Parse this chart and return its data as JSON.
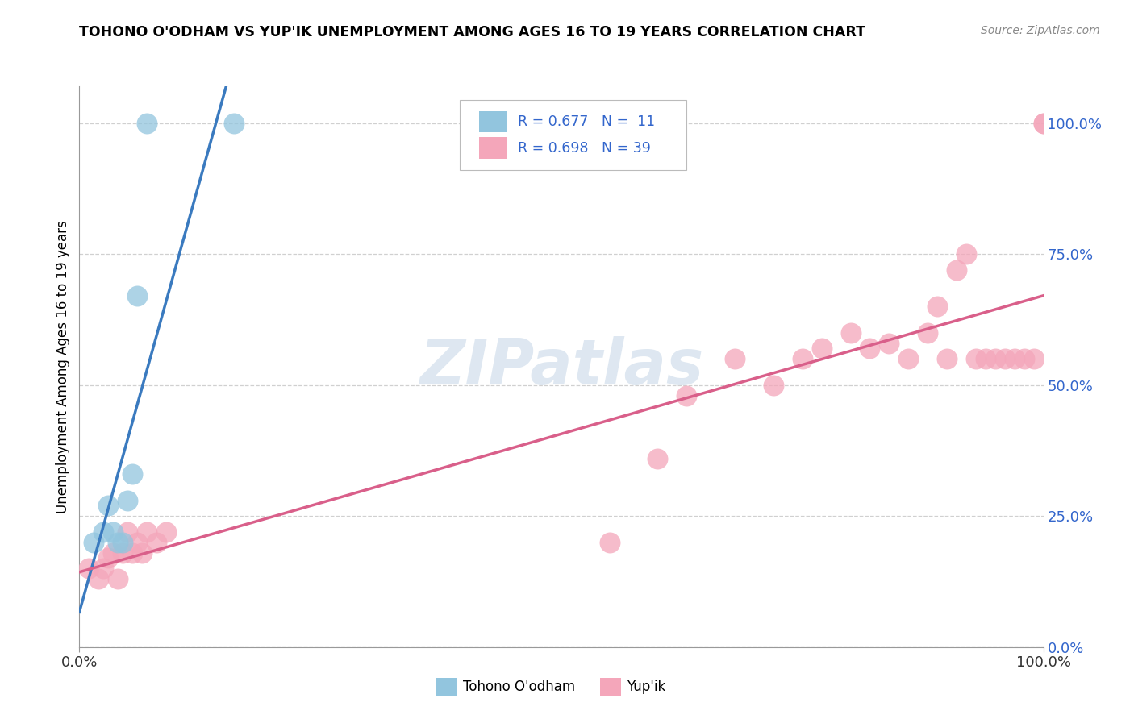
{
  "title": "TOHONO O'ODHAM VS YUP'IK UNEMPLOYMENT AMONG AGES 16 TO 19 YEARS CORRELATION CHART",
  "source": "Source: ZipAtlas.com",
  "ylabel": "Unemployment Among Ages 16 to 19 years",
  "ytick_labels": [
    "0.0%",
    "25.0%",
    "50.0%",
    "75.0%",
    "100.0%"
  ],
  "ytick_values": [
    0,
    25,
    50,
    75,
    100
  ],
  "legend_labels": [
    "Tohono O'odham",
    "Yup'ik"
  ],
  "blue_color": "#92c5de",
  "pink_color": "#f4a6ba",
  "blue_line_color": "#3a7abf",
  "pink_line_color": "#d95f8a",
  "legend_text_color": "#3366cc",
  "background_color": "#ffffff",
  "watermark_text": "ZIPatlas",
  "watermark_color": "#c8d8e8",
  "tohono_x": [
    1.5,
    2.5,
    3.0,
    3.5,
    4.0,
    4.5,
    5.0,
    5.5,
    6.0,
    7.0,
    16.0
  ],
  "tohono_y": [
    20.0,
    22.0,
    27.0,
    22.0,
    20.0,
    20.0,
    28.0,
    33.0,
    67.0,
    100.0,
    100.0
  ],
  "yupik_x": [
    1.0,
    2.0,
    2.5,
    3.0,
    3.5,
    4.0,
    4.5,
    5.0,
    5.5,
    6.0,
    6.5,
    7.0,
    8.0,
    9.0,
    55.0,
    60.0,
    63.0,
    68.0,
    72.0,
    75.0,
    77.0,
    80.0,
    82.0,
    84.0,
    86.0,
    88.0,
    89.0,
    90.0,
    91.0,
    92.0,
    93.0,
    94.0,
    95.0,
    96.0,
    97.0,
    98.0,
    99.0,
    100.0,
    100.0
  ],
  "yupik_y": [
    15.0,
    13.0,
    15.0,
    17.0,
    18.0,
    13.0,
    18.0,
    22.0,
    18.0,
    20.0,
    18.0,
    22.0,
    20.0,
    22.0,
    20.0,
    36.0,
    48.0,
    55.0,
    50.0,
    55.0,
    57.0,
    60.0,
    57.0,
    58.0,
    55.0,
    60.0,
    65.0,
    55.0,
    72.0,
    75.0,
    55.0,
    55.0,
    55.0,
    55.0,
    55.0,
    55.0,
    55.0,
    100.0,
    100.0
  ],
  "xlim": [
    0,
    100
  ],
  "ylim": [
    0,
    107
  ],
  "grid_color": "#d0d0d0",
  "spine_color": "#999999",
  "xtick_color": "#333333",
  "ytick_color": "#3366cc"
}
